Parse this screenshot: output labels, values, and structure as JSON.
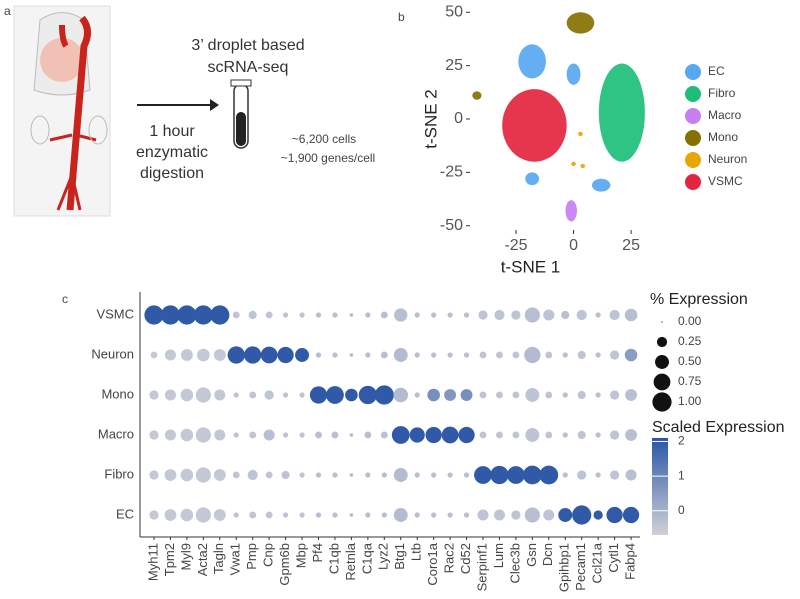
{
  "panel_a": {
    "label": "a",
    "line1": "3’ droplet based",
    "line2": "scRNA-seq",
    "step1": "1 hour",
    "step2": "enzymatic",
    "step3": "digestion",
    "cells": "~6,200 cells",
    "genes": "~1,900 genes/cell"
  },
  "chart_data": [
    {
      "type": "cluster-map",
      "label": "b",
      "xlabel": "t-SNE 1",
      "ylabel": "t-SNE 2",
      "xlim": [
        -45,
        38
      ],
      "ylim": [
        -52,
        52
      ],
      "xticks": [
        -25,
        0,
        25
      ],
      "yticks": [
        -50,
        -25,
        0,
        25,
        50
      ],
      "series": [
        {
          "name": "EC",
          "color": "#56a8f0",
          "clusters": [
            {
              "x": -18,
              "y": 27,
              "rx": 6,
              "ry": 8
            },
            {
              "x": 0,
              "y": 21,
              "rx": 3,
              "ry": 5
            },
            {
              "x": -18,
              "y": -28,
              "rx": 3,
              "ry": 3
            },
            {
              "x": 12,
              "y": -31,
              "rx": 4,
              "ry": 3
            }
          ]
        },
        {
          "name": "Fibro",
          "color": "#1dbf78",
          "clusters": [
            {
              "x": 21,
              "y": 3,
              "rx": 10,
              "ry": 23
            }
          ]
        },
        {
          "name": "Macro",
          "color": "#c77ef0",
          "clusters": [
            {
              "x": -1,
              "y": -43,
              "rx": 2.5,
              "ry": 5
            }
          ]
        },
        {
          "name": "Mono",
          "color": "#857100",
          "clusters": [
            {
              "x": 3,
              "y": 45,
              "rx": 6,
              "ry": 5
            },
            {
              "x": -42,
              "y": 11,
              "rx": 2,
              "ry": 2
            }
          ]
        },
        {
          "name": "Neuron",
          "color": "#e6a700",
          "clusters": [
            {
              "x": 0,
              "y": -21,
              "rx": 1,
              "ry": 1
            },
            {
              "x": 4,
              "y": -22,
              "rx": 1,
              "ry": 1
            },
            {
              "x": 3,
              "y": -7,
              "rx": 1,
              "ry": 1
            }
          ]
        },
        {
          "name": "VSMC",
          "color": "#e4253f",
          "clusters": [
            {
              "x": -17,
              "y": -3,
              "rx": 14,
              "ry": 17
            }
          ]
        }
      ]
    },
    {
      "type": "dot",
      "label": "c",
      "categories": [
        "Myh11",
        "Tpm2",
        "Myl9",
        "Acta2",
        "Tagln",
        "Vwa1",
        "Pmp",
        "Cnp",
        "Gpm6b",
        "Mbp",
        "Pf4",
        "C1qb",
        "Retnla",
        "C1qa",
        "Lyz2",
        "Btg1",
        "Ltb",
        "Coro1a",
        "Rac2",
        "Cd52",
        "Serpinf1",
        "Lum",
        "Clec3b",
        "Gsn",
        "Dcn",
        "Gpihbp1",
        "Pecam1",
        "Ccl21a",
        "Cytl1",
        "Fabp4"
      ],
      "rows": [
        "VSMC",
        "Neuron",
        "Mono",
        "Macro",
        "Fibro",
        "EC"
      ],
      "pct": [
        [
          1,
          1,
          1,
          1,
          1,
          0.1,
          0.15,
          0.1,
          0.05,
          0.05,
          0.05,
          0.05,
          0.02,
          0.05,
          0.1,
          0.45,
          0.05,
          0.05,
          0.05,
          0.05,
          0.2,
          0.25,
          0.2,
          0.6,
          0.3,
          0.15,
          0.25,
          0.05,
          0.25,
          0.4
        ],
        [
          0.1,
          0.3,
          0.35,
          0.4,
          0.35,
          0.8,
          0.8,
          0.75,
          0.7,
          0.5,
          0.05,
          0.05,
          0.02,
          0.05,
          0.1,
          0.5,
          0.05,
          0.05,
          0.05,
          0.05,
          0.1,
          0.1,
          0.1,
          0.7,
          0.1,
          0.05,
          0.15,
          0.05,
          0.2,
          0.4
        ],
        [
          0.2,
          0.3,
          0.4,
          0.6,
          0.3,
          0.05,
          0.1,
          0.2,
          0.05,
          0.05,
          0.8,
          0.85,
          0.4,
          0.9,
          1,
          0.55,
          0.05,
          0.4,
          0.35,
          0.35,
          0.1,
          0.1,
          0.1,
          0.5,
          0.1,
          0.05,
          0.15,
          0.05,
          0.2,
          0.35
        ],
        [
          0.2,
          0.3,
          0.4,
          0.6,
          0.3,
          0.05,
          0.1,
          0.3,
          0.05,
          0.05,
          0.1,
          0.1,
          0.02,
          0.1,
          0.1,
          0.85,
          0.6,
          0.7,
          0.75,
          0.7,
          0.1,
          0.1,
          0.1,
          0.5,
          0.1,
          0.05,
          0.15,
          0.05,
          0.2,
          0.35
        ],
        [
          0.2,
          0.35,
          0.4,
          0.6,
          0.35,
          0.1,
          0.25,
          0.1,
          0.15,
          0.05,
          0.05,
          0.05,
          0.02,
          0.05,
          0.05,
          0.5,
          0.05,
          0.05,
          0.05,
          0.05,
          0.85,
          0.9,
          0.85,
          0.95,
          0.95,
          0.05,
          0.2,
          0.05,
          0.2,
          0.3
        ],
        [
          0.2,
          0.35,
          0.4,
          0.6,
          0.35,
          0.05,
          0.1,
          0.1,
          0.05,
          0.05,
          0.05,
          0.05,
          0.02,
          0.05,
          0.05,
          0.5,
          0.05,
          0.05,
          0.05,
          0.05,
          0.3,
          0.3,
          0.2,
          0.6,
          0.3,
          0.5,
          1,
          0.2,
          0.7,
          0.7
        ]
      ],
      "scaled": [
        [
          2,
          2,
          2,
          2,
          2,
          -0.4,
          -0.4,
          -0.4,
          -0.4,
          -0.4,
          -0.3,
          -0.3,
          -0.3,
          -0.3,
          -0.3,
          -0.3,
          -0.3,
          -0.3,
          -0.3,
          -0.3,
          -0.4,
          -0.4,
          -0.4,
          -0.3,
          -0.4,
          -0.3,
          -0.4,
          -0.3,
          -0.4,
          -0.3
        ],
        [
          -0.5,
          -0.5,
          -0.5,
          -0.5,
          -0.5,
          2,
          2,
          2,
          2,
          2,
          -0.3,
          -0.3,
          -0.3,
          -0.3,
          -0.3,
          -0.2,
          -0.3,
          -0.3,
          -0.3,
          -0.3,
          -0.4,
          -0.4,
          -0.4,
          -0.2,
          -0.4,
          -0.3,
          -0.4,
          -0.3,
          -0.4,
          0.5
        ],
        [
          -0.5,
          -0.5,
          -0.5,
          -0.5,
          -0.5,
          -0.4,
          -0.4,
          -0.4,
          -0.4,
          -0.4,
          2,
          2,
          2,
          2,
          2,
          -0.2,
          -0.3,
          0.8,
          0.6,
          0.8,
          -0.4,
          -0.4,
          -0.4,
          -0.4,
          -0.4,
          -0.3,
          -0.4,
          -0.3,
          -0.4,
          -0.3
        ],
        [
          -0.5,
          -0.5,
          -0.5,
          -0.5,
          -0.5,
          -0.4,
          -0.4,
          -0.3,
          -0.4,
          -0.4,
          -0.3,
          -0.3,
          -0.3,
          -0.3,
          -0.3,
          2,
          2,
          2,
          2,
          2,
          -0.4,
          -0.4,
          -0.4,
          -0.4,
          -0.4,
          -0.3,
          -0.4,
          -0.3,
          -0.4,
          -0.3
        ],
        [
          -0.5,
          -0.5,
          -0.5,
          -0.5,
          -0.5,
          -0.4,
          -0.4,
          -0.4,
          -0.4,
          -0.4,
          -0.3,
          -0.3,
          -0.3,
          -0.3,
          -0.3,
          -0.2,
          -0.3,
          -0.3,
          -0.3,
          -0.3,
          2,
          2,
          2,
          2,
          2,
          -0.3,
          -0.4,
          -0.3,
          -0.4,
          -0.3
        ],
        [
          -0.5,
          -0.5,
          -0.5,
          -0.5,
          -0.5,
          -0.4,
          -0.4,
          -0.4,
          -0.4,
          -0.4,
          -0.3,
          -0.3,
          -0.3,
          -0.3,
          -0.3,
          -0.2,
          -0.3,
          -0.3,
          -0.3,
          -0.3,
          -0.4,
          -0.4,
          -0.4,
          -0.3,
          -0.4,
          2,
          2,
          2,
          2,
          2
        ]
      ],
      "size_legend": {
        "title": "% Expression",
        "values": [
          {
            "value": 0,
            "label": "0.00"
          },
          {
            "value": 0.25,
            "label": "0.25"
          },
          {
            "value": 0.5,
            "label": "0.50"
          },
          {
            "value": 0.75,
            "label": "0.75"
          },
          {
            "value": 1,
            "label": "1.00"
          }
        ]
      },
      "color_legend": {
        "title": "Scaled Expression",
        "lim": [
          -0.7,
          2.1
        ],
        "ticks": [
          0,
          1,
          2
        ],
        "low_color": "#d0d1d8",
        "high_color": "#2a55a5"
      }
    }
  ]
}
